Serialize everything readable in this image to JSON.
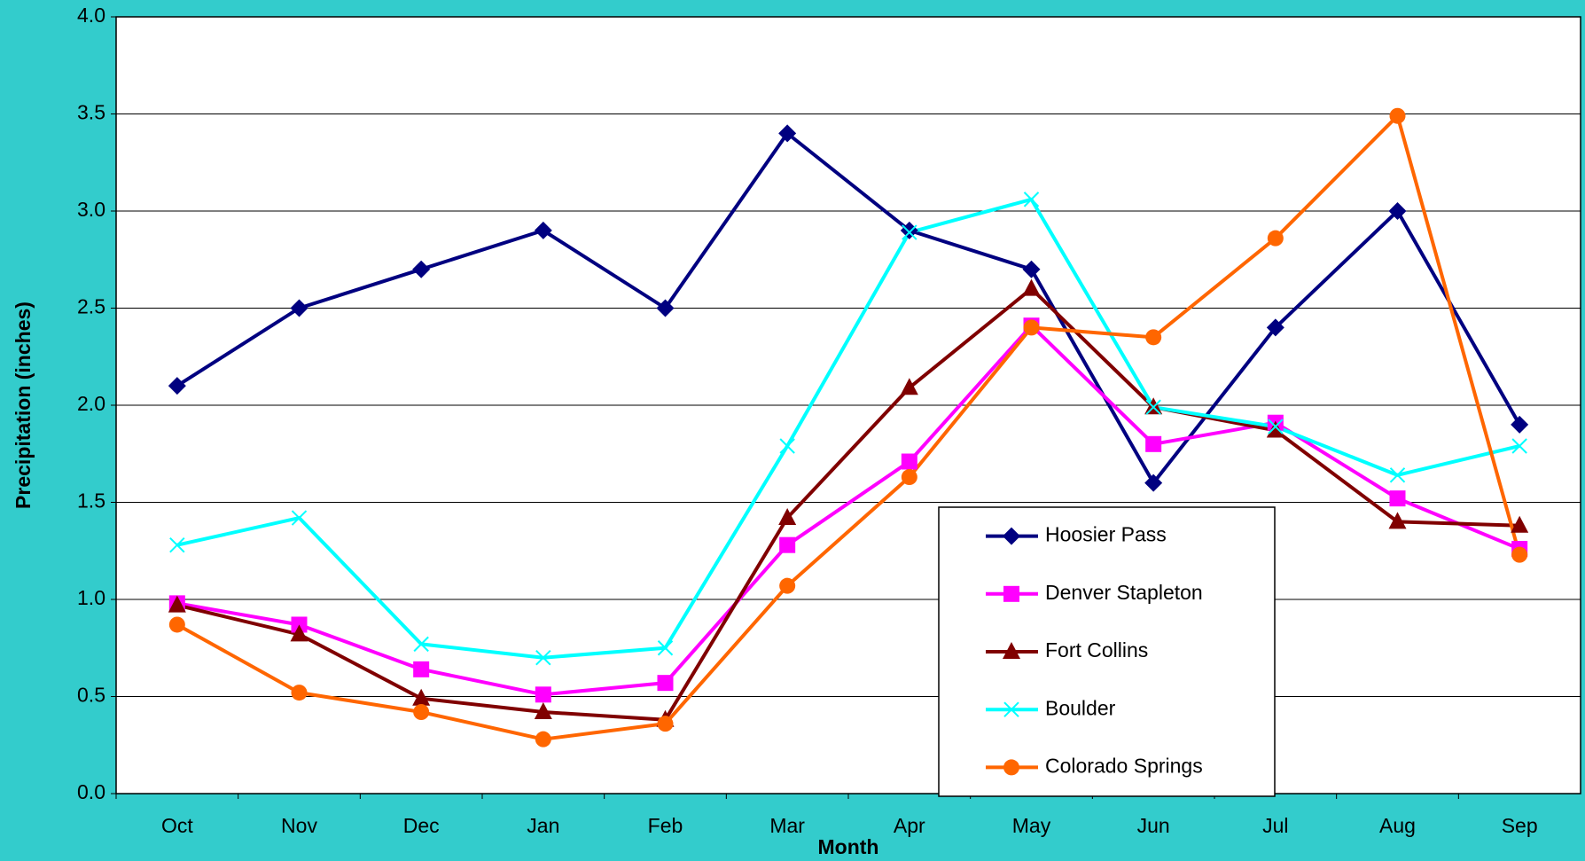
{
  "chart_data": {
    "type": "line",
    "xlabel": "Month",
    "ylabel": "Precipitation (inches)",
    "categories": [
      "Oct",
      "Nov",
      "Dec",
      "Jan",
      "Feb",
      "Mar",
      "Apr",
      "May",
      "Jun",
      "Jul",
      "Aug",
      "Sep"
    ],
    "series": [
      {
        "name": "Hoosier Pass",
        "color": "#000080",
        "marker": "diamond",
        "values": [
          2.1,
          2.5,
          2.7,
          2.9,
          2.5,
          3.4,
          2.9,
          2.7,
          1.6,
          2.4,
          3.0,
          1.9
        ]
      },
      {
        "name": "Denver Stapleton",
        "color": "#ff00ff",
        "marker": "square",
        "values": [
          0.98,
          0.87,
          0.64,
          0.51,
          0.57,
          1.28,
          1.71,
          2.41,
          1.8,
          1.91,
          1.52,
          1.26
        ]
      },
      {
        "name": "Fort Collins",
        "color": "#800000",
        "marker": "triangle",
        "values": [
          0.97,
          0.82,
          0.49,
          0.42,
          0.38,
          1.42,
          2.09,
          2.6,
          1.99,
          1.87,
          1.4,
          1.38
        ]
      },
      {
        "name": "Boulder",
        "color": "#00ffff",
        "marker": "x",
        "values": [
          1.28,
          1.42,
          0.77,
          0.7,
          0.75,
          1.79,
          2.89,
          3.06,
          1.99,
          1.89,
          1.64,
          1.79
        ]
      },
      {
        "name": "Colorado Springs",
        "color": "#ff6600",
        "marker": "circle",
        "values": [
          0.87,
          0.52,
          0.42,
          0.28,
          0.36,
          1.07,
          1.63,
          2.4,
          2.35,
          2.86,
          3.49,
          1.23
        ]
      }
    ],
    "ylim": [
      0,
      4
    ],
    "yticks": [
      {
        "value": 0,
        "label": "0.0"
      },
      0.5,
      {
        "value": 1,
        "label": "1.0"
      },
      1.5,
      {
        "value": 2,
        "label": "2.0"
      },
      2.5,
      {
        "value": 3,
        "label": "3.0"
      },
      3.5,
      {
        "value": 4,
        "label": "4.0"
      }
    ],
    "grid": true,
    "legend": "lower right"
  }
}
